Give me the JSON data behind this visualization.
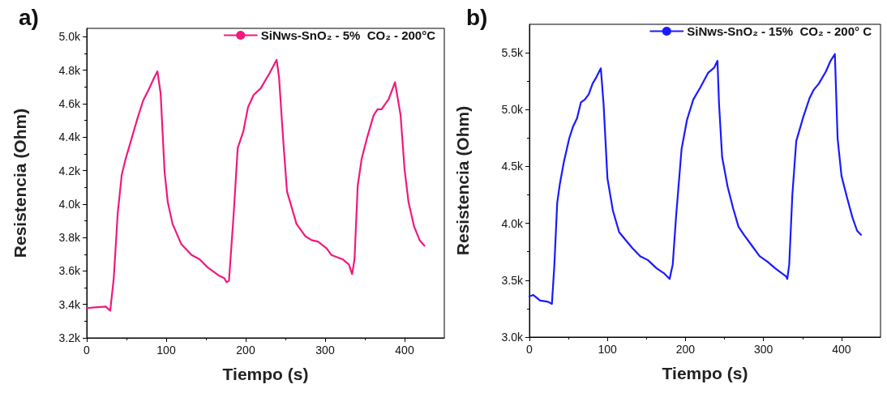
{
  "chart_data": [
    {
      "type": "line",
      "title": "a)",
      "xlabel": "Tiempo (s)",
      "ylabel": "Resistencia (Ohm)",
      "legend": "top right",
      "grid": false,
      "marker": "none",
      "line_style": "solid",
      "xlim": [
        0,
        450
      ],
      "xticks": [
        0,
        100,
        200,
        300,
        400
      ],
      "ylim": [
        3200,
        5050
      ],
      "yticks": [
        {
          "value": 3200,
          "label": "3.2k"
        },
        {
          "value": 3400,
          "label": "3.4k"
        },
        {
          "value": 3600,
          "label": "3.6k"
        },
        {
          "value": 3800,
          "label": "3.8k"
        },
        {
          "value": 4000,
          "label": "4.0k"
        },
        {
          "value": 4200,
          "label": "4.2k"
        },
        {
          "value": 4400,
          "label": "4.4k"
        },
        {
          "value": 4600,
          "label": "4.6k"
        },
        {
          "value": 4800,
          "label": "4.8k"
        },
        {
          "value": 5000,
          "label": "5.0k"
        }
      ],
      "series": [
        {
          "name": "SiNws-SnO₂ - 5%  CO₂ - 200°C",
          "color": "#f0197d",
          "x": [
            0,
            10,
            24,
            29.5,
            34,
            39,
            44,
            49,
            58,
            64,
            71,
            78,
            85,
            89,
            93,
            98,
            102,
            108,
            119,
            132,
            142,
            152,
            166,
            173,
            176,
            179,
            185,
            190,
            197,
            203,
            210,
            219,
            230,
            239,
            242,
            247,
            252,
            264,
            275,
            283,
            291,
            302,
            308,
            322,
            330,
            334,
            337,
            341,
            346,
            353,
            361,
            366,
            371,
            380,
            388,
            395,
            400,
            405,
            412,
            419,
            425
          ],
          "values": [
            3378,
            3382,
            3387,
            3362,
            3557,
            3946,
            4173,
            4271,
            4417,
            4514,
            4619,
            4684,
            4757,
            4793,
            4660,
            4189,
            4011,
            3881,
            3760,
            3695,
            3670,
            3622,
            3573,
            3557,
            3533,
            3541,
            3946,
            4335,
            4433,
            4579,
            4652,
            4692,
            4781,
            4862,
            4757,
            4400,
            4076,
            3881,
            3808,
            3784,
            3776,
            3735,
            3695,
            3670,
            3638,
            3581,
            3670,
            4108,
            4271,
            4400,
            4530,
            4566,
            4566,
            4627,
            4728,
            4530,
            4206,
            4011,
            3865,
            3784,
            3751
          ]
        }
      ]
    },
    {
      "type": "line",
      "title": "b)",
      "xlabel": "Tiempo (s)",
      "ylabel": "Resistencia (Ohm)",
      "legend": "top right",
      "grid": false,
      "marker": "none",
      "line_style": "solid",
      "xlim": [
        0,
        450
      ],
      "xticks": [
        0,
        100,
        200,
        300,
        400
      ],
      "ylim": [
        3000,
        5750
      ],
      "yticks": [
        {
          "value": 3000,
          "label": "3.0k"
        },
        {
          "value": 3500,
          "label": "3.5k"
        },
        {
          "value": 4000,
          "label": "4.0k"
        },
        {
          "value": 4500,
          "label": "4.5k"
        },
        {
          "value": 5000,
          "label": "5.0k"
        },
        {
          "value": 5500,
          "label": "5.5k"
        }
      ],
      "series": [
        {
          "name": "SiNws-SnO₂ - 15%  CO₂ - 200° C",
          "color": "#1a1aff",
          "x": [
            0,
            5,
            13.6,
            23.7,
            28.8,
            32,
            35.6,
            39,
            44,
            51,
            56,
            61,
            66,
            71,
            76,
            81,
            86,
            91.5,
            95,
            100,
            107,
            115,
            122,
            132,
            142,
            152,
            163,
            173,
            179.7,
            183.7,
            188,
            195,
            202,
            210,
            219,
            229,
            237,
            241,
            243,
            247,
            254,
            261,
            268,
            275,
            285,
            295,
            305,
            315,
            324,
            329,
            330.5,
            333,
            337,
            342,
            351,
            359,
            364,
            371,
            380,
            386,
            391.5,
            395,
            400,
            407,
            414,
            420,
            425
          ],
          "values": [
            3358,
            3370,
            3322,
            3311,
            3292,
            3640,
            4182,
            4347,
            4535,
            4747,
            4853,
            4923,
            5064,
            5088,
            5135,
            5229,
            5288,
            5363,
            5053,
            4394,
            4111,
            3923,
            3864,
            3782,
            3711,
            3676,
            3605,
            3558,
            3511,
            3640,
            4064,
            4653,
            4911,
            5088,
            5194,
            5323,
            5370,
            5429,
            5053,
            4582,
            4323,
            4135,
            3970,
            3899,
            3805,
            3711,
            3664,
            3605,
            3558,
            3534,
            3511,
            3640,
            4252,
            4723,
            4935,
            5100,
            5170,
            5229,
            5335,
            5429,
            5488,
            4747,
            4417,
            4229,
            4052,
            3935,
            3899
          ]
        }
      ]
    }
  ]
}
